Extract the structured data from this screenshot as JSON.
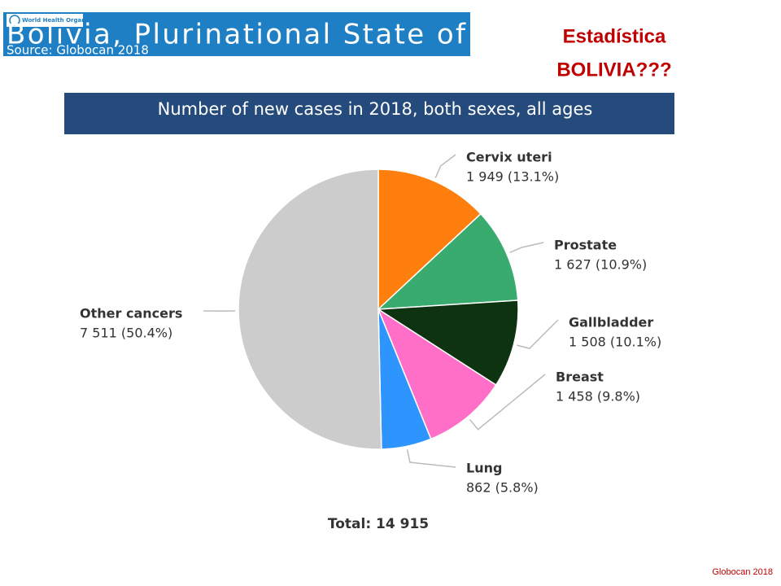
{
  "header": {
    "logo_text": "World Health Organization",
    "country": "Bolivia, Plurinational State of",
    "source": "Source: Globocan 2018"
  },
  "side_title": [
    "Estadística",
    "BOLIVIA???"
  ],
  "chart_data": {
    "type": "pie",
    "title": "Number of new cases in 2018, both sexes, all ages",
    "categories": [
      "Cervix uteri",
      "Prostate",
      "Gallbladder",
      "Breast",
      "Lung",
      "Other cancers"
    ],
    "values": [
      1949,
      1627,
      1508,
      1458,
      862,
      7511
    ],
    "value_labels": [
      "1 949 (13.1%)",
      "1 627 (10.9%)",
      "1 508 (10.1%)",
      "1 458 (9.8%)",
      "862 (5.8%)",
      "7 511 (50.4%)"
    ],
    "colors": [
      "#ff7f0e",
      "#3aab6e",
      "#0e3311",
      "#ff6ec7",
      "#2e95ff",
      "#cccccc"
    ]
  },
  "total": "Total: 14 915",
  "footer": "Globocan 2018"
}
